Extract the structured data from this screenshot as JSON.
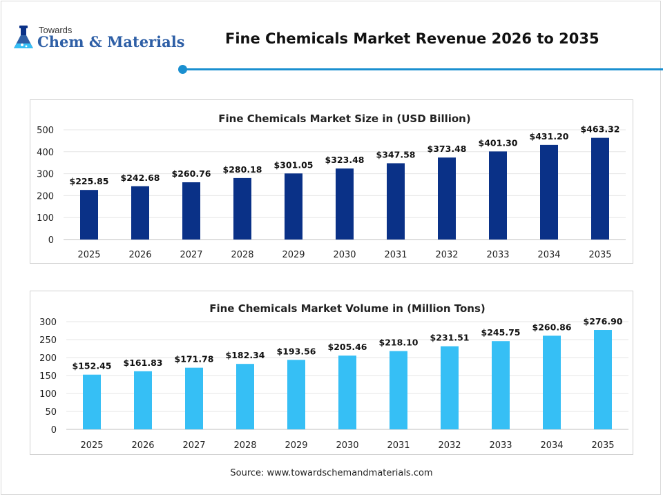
{
  "logo": {
    "small_text": "Towards",
    "main_text": "Chem & Materials"
  },
  "page_title": "Fine Chemicals Market Revenue 2026 to 2035",
  "colors": {
    "accent": "#1a8fd0",
    "size_bars": "#0a3187",
    "volume_bars": "#36bff5"
  },
  "chart_data": [
    {
      "type": "bar",
      "title": "Fine Chemicals Market Size in (USD Billion)",
      "categories": [
        "2025",
        "2026",
        "2027",
        "2028",
        "2029",
        "2030",
        "2031",
        "2032",
        "2033",
        "2034",
        "2035"
      ],
      "values": [
        225.85,
        242.68,
        260.76,
        280.18,
        301.05,
        323.48,
        347.58,
        373.48,
        401.3,
        431.2,
        463.32
      ],
      "value_labels": [
        "$225.85",
        "$242.68",
        "$260.76",
        "$280.18",
        "$301.05",
        "$323.48",
        "$347.58",
        "$373.48",
        "$401.30",
        "$431.20",
        "$463.32"
      ],
      "yticks": [
        "0",
        "100",
        "200",
        "300",
        "400",
        "500"
      ],
      "ylim": [
        0,
        500
      ],
      "grid": true,
      "color": "#0a3187"
    },
    {
      "type": "bar",
      "title": "Fine Chemicals Market Volume in (Million Tons)",
      "categories": [
        "2025",
        "2026",
        "2027",
        "2028",
        "2029",
        "2030",
        "2031",
        "2032",
        "2033",
        "2034",
        "2035"
      ],
      "values": [
        152.45,
        161.83,
        171.78,
        182.34,
        193.56,
        205.46,
        218.1,
        231.51,
        245.75,
        260.86,
        276.9
      ],
      "value_labels": [
        "$152.45",
        "$161.83",
        "$171.78",
        "$182.34",
        "$193.56",
        "$205.46",
        "$218.10",
        "$231.51",
        "$245.75",
        "$260.86",
        "$276.90"
      ],
      "yticks": [
        "0",
        "50",
        "100",
        "150",
        "200",
        "250",
        "300"
      ],
      "ylim": [
        0,
        300
      ],
      "grid": true,
      "color": "#36bff5"
    }
  ],
  "source_text": "Source: www.towardschemandmaterials.com"
}
